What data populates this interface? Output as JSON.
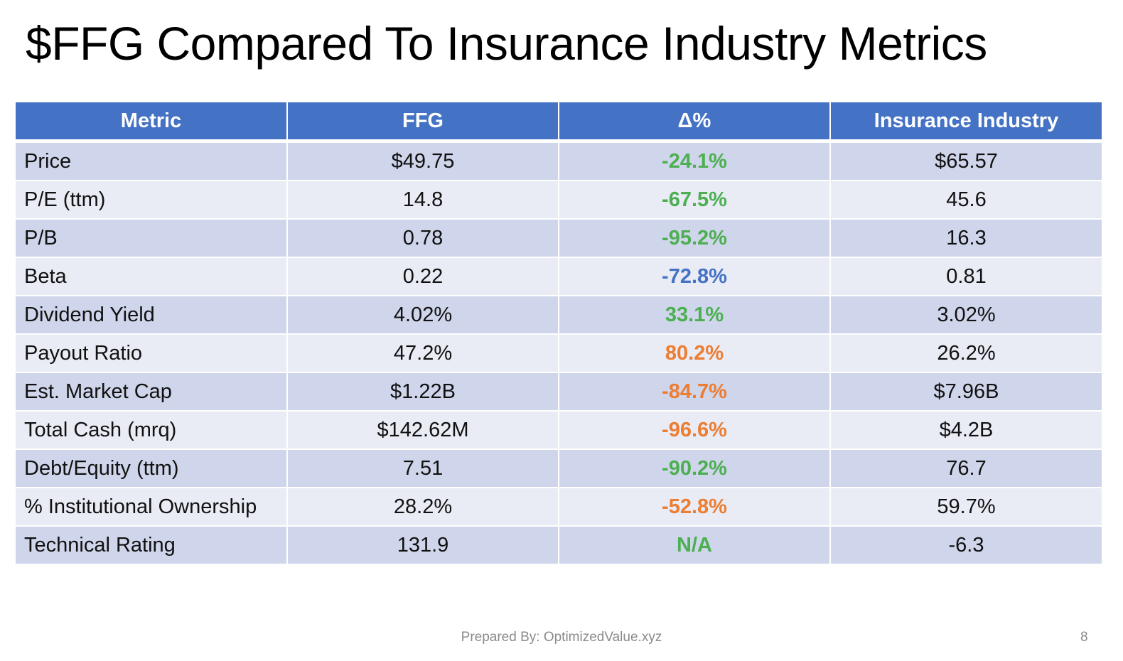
{
  "title": "$FFG Compared To Insurance Industry Metrics",
  "colors": {
    "header_bg": "#4472c4",
    "row_odd": "#cfd5ea",
    "row_even": "#e9ebf5",
    "green": "#4caf50",
    "blue": "#4472c4",
    "orange": "#ed7d31"
  },
  "table": {
    "headers": [
      "Metric",
      "FFG",
      "Δ%",
      "Insurance Industry"
    ],
    "rows": [
      {
        "metric": "Price",
        "ffg": "$49.75",
        "delta": "-24.1%",
        "delta_color": "green",
        "industry": "$65.57"
      },
      {
        "metric": "P/E (ttm)",
        "ffg": "14.8",
        "delta": "-67.5%",
        "delta_color": "green",
        "industry": "45.6"
      },
      {
        "metric": "P/B",
        "ffg": "0.78",
        "delta": "-95.2%",
        "delta_color": "green",
        "industry": "16.3"
      },
      {
        "metric": "Beta",
        "ffg": "0.22",
        "delta": "-72.8%",
        "delta_color": "blue",
        "industry": "0.81"
      },
      {
        "metric": "Dividend Yield",
        "ffg": "4.02%",
        "delta": "33.1%",
        "delta_color": "green",
        "industry": "3.02%"
      },
      {
        "metric": "Payout Ratio",
        "ffg": "47.2%",
        "delta": "80.2%",
        "delta_color": "orange",
        "industry": "26.2%"
      },
      {
        "metric": "Est. Market Cap",
        "ffg": "$1.22B",
        "delta": "-84.7%",
        "delta_color": "orange",
        "industry": "$7.96B"
      },
      {
        "metric": "Total Cash (mrq)",
        "ffg": "$142.62M",
        "delta": "-96.6%",
        "delta_color": "orange",
        "industry": "$4.2B"
      },
      {
        "metric": "Debt/Equity (ttm)",
        "ffg": "7.51",
        "delta": "-90.2%",
        "delta_color": "green",
        "industry": "76.7"
      },
      {
        "metric": "% Institutional Ownership",
        "ffg": "28.2%",
        "delta": "-52.8%",
        "delta_color": "orange",
        "industry": "59.7%"
      },
      {
        "metric": "Technical Rating",
        "ffg": "131.9",
        "delta": "N/A",
        "delta_color": "green",
        "industry": "-6.3"
      }
    ]
  },
  "footer": {
    "prepared_by": "Prepared By: OptimizedValue.xyz",
    "page_number": "8"
  }
}
